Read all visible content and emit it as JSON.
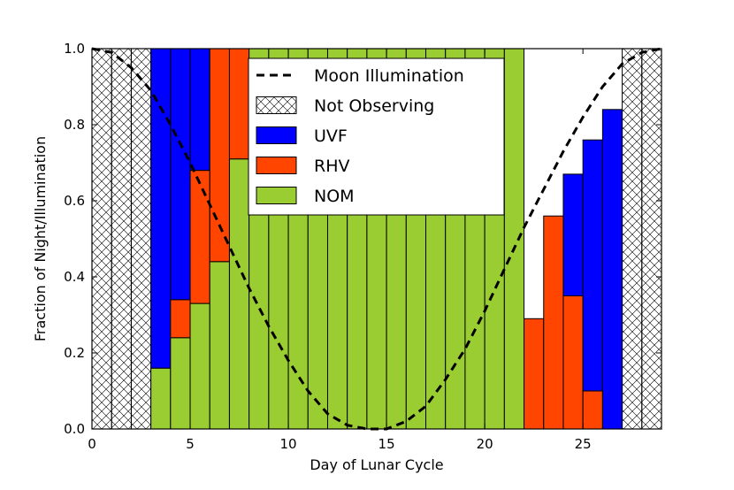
{
  "chart_data": {
    "type": "bar",
    "stacked": true,
    "xlabel": "Day of Lunar Cycle",
    "ylabel": "Fraction of Night/Illumination",
    "xlim": [
      0,
      29
    ],
    "ylim": [
      0,
      1.0
    ],
    "xticks": [
      0,
      5,
      10,
      15,
      20,
      25
    ],
    "xtick_labels": [
      "0",
      "5",
      "10",
      "15",
      "20",
      "25"
    ],
    "yticks": [
      0.0,
      0.2,
      0.4,
      0.6,
      0.8,
      1.0
    ],
    "ytick_labels": [
      "0.0",
      "0.2",
      "0.4",
      "0.6",
      "0.8",
      "1.0"
    ],
    "legend_position": "top-center",
    "days": [
      0,
      1,
      2,
      3,
      4,
      5,
      6,
      7,
      8,
      9,
      10,
      11,
      12,
      13,
      14,
      15,
      16,
      17,
      18,
      19,
      20,
      21,
      22,
      23,
      24,
      25,
      26,
      27,
      28
    ],
    "series": [
      {
        "name": "NOM",
        "key": "nom",
        "color": "#9acd32",
        "values": [
          0,
          0,
          0,
          0.16,
          0.24,
          0.33,
          0.44,
          0.71,
          1,
          1,
          1,
          1,
          1,
          1,
          1,
          1,
          1,
          1,
          1,
          1,
          1,
          1,
          0,
          0,
          0,
          0,
          0,
          0,
          0
        ]
      },
      {
        "name": "RHV",
        "key": "rhv",
        "color": "#ff4500",
        "values": [
          0,
          0,
          0,
          0,
          0.1,
          0.35,
          0.56,
          0.29,
          0,
          0,
          0,
          0,
          0,
          0,
          0,
          0,
          0,
          0,
          0,
          0,
          0,
          0,
          0.29,
          0.56,
          0.35,
          0.1,
          0,
          0,
          0
        ]
      },
      {
        "name": "UVF",
        "key": "uvf",
        "color": "#0000ff",
        "values": [
          0,
          0,
          0,
          0.84,
          0.66,
          0.32,
          0,
          0,
          0,
          0,
          0,
          0,
          0,
          0,
          0,
          0,
          0,
          0,
          0,
          0,
          0,
          0,
          0,
          0,
          0.32,
          0.66,
          0.84,
          0,
          0
        ]
      },
      {
        "name": "Not Observing",
        "key": "not_observing",
        "color": "#ffffff",
        "values": [
          1,
          1,
          1,
          0,
          0,
          0,
          0,
          0,
          0,
          0,
          0,
          0,
          0,
          0,
          0,
          0,
          0,
          0,
          0,
          0,
          0,
          0,
          0,
          0,
          0,
          0,
          0,
          1,
          1
        ]
      }
    ],
    "line_series": {
      "name": "Moon Illumination",
      "style": "dashed",
      "color": "#000000",
      "x": [
        0,
        1,
        2,
        3,
        4,
        5,
        6,
        7,
        8,
        9,
        10,
        11,
        12,
        13,
        14,
        15,
        16,
        17,
        18,
        19,
        20,
        21,
        22,
        23,
        24,
        25,
        26,
        27,
        28,
        29
      ],
      "y": [
        1.0,
        0.99,
        0.95,
        0.89,
        0.8,
        0.7,
        0.59,
        0.48,
        0.37,
        0.27,
        0.18,
        0.1,
        0.04,
        0.01,
        0.0,
        0.0,
        0.02,
        0.06,
        0.13,
        0.21,
        0.31,
        0.42,
        0.53,
        0.63,
        0.73,
        0.82,
        0.9,
        0.96,
        0.99,
        1.0
      ]
    },
    "legend": [
      {
        "label": "Moon Illumination",
        "key": "moon"
      },
      {
        "label": "Not Observing",
        "key": "not_observing"
      },
      {
        "label": "UVF",
        "key": "uvf"
      },
      {
        "label": "RHV",
        "key": "rhv"
      },
      {
        "label": "NOM",
        "key": "nom"
      }
    ]
  }
}
